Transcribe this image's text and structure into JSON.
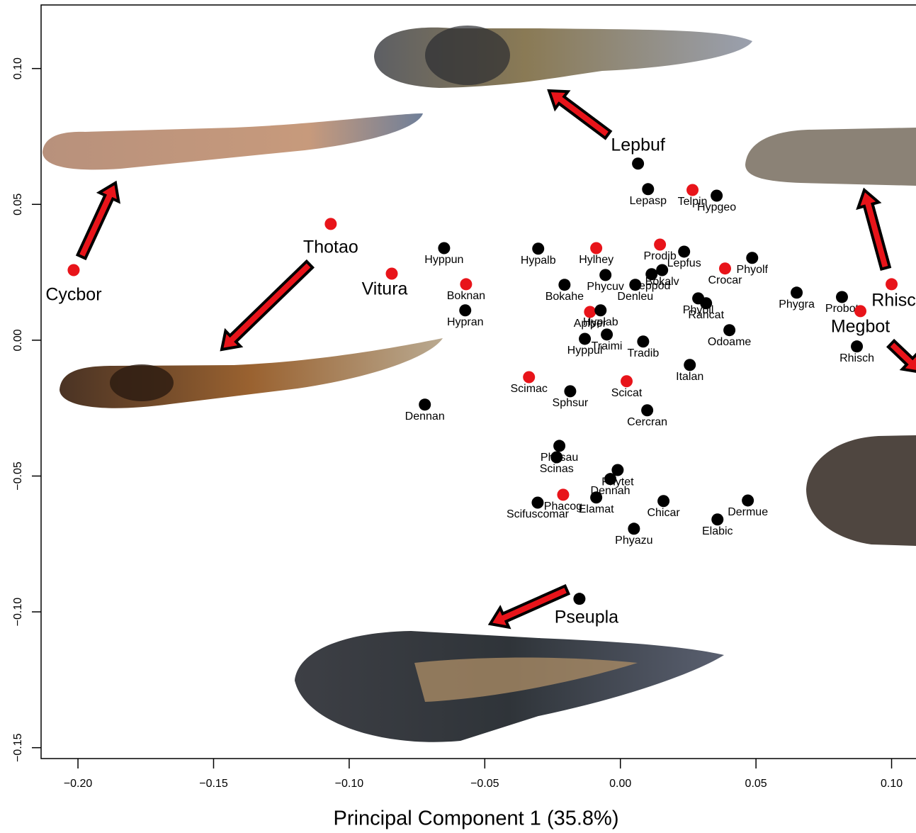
{
  "chart_data": {
    "type": "scatter",
    "x_label": "Principal Component 1 (35.8%)",
    "xlim": [
      -0.2136,
      0.109
    ],
    "ylim": [
      -0.154,
      0.1234
    ],
    "xticks": [
      {
        "value": -0.2,
        "label": "−0.20"
      },
      {
        "value": -0.15,
        "label": "−0.15"
      },
      {
        "value": -0.1,
        "label": "−0.10"
      },
      {
        "value": -0.05,
        "label": "−0.05"
      },
      {
        "value": 0,
        "label": "0.00"
      },
      {
        "value": 0.05,
        "label": "0.05"
      },
      {
        "value": 0.1,
        "label": "0.10"
      }
    ],
    "yticks": [
      {
        "value": -0.15,
        "label": "−0.15"
      },
      {
        "value": -0.1,
        "label": "−0.10"
      },
      {
        "value": -0.05,
        "label": "−0.05"
      },
      {
        "value": 0,
        "label": "0.00"
      },
      {
        "value": 0.05,
        "label": "0.05"
      },
      {
        "value": 0.1,
        "label": "0.10"
      }
    ],
    "point_labels": [
      "Lepbuf",
      "Lepasp",
      "Telpin",
      "Hypgeo",
      "Cycbor",
      "Thotao",
      "Vitura",
      "Hyppun",
      "Boknan",
      "Hypran",
      "Hypalb",
      "Hylhey",
      "Prodib",
      "Lepfus",
      "Phyolf",
      "Crocar",
      "Bokahe",
      "Phycuv",
      "Denleu",
      "Leppod",
      "Bokalv",
      "Phygra",
      "Probot",
      "Megbot",
      "Rhisc",
      "Rhisch",
      "Phybil",
      "Rancat",
      "Odoame",
      "Aplper",
      "Hyplab",
      "Hyppul",
      "Traimi",
      "Tradib",
      "Italan",
      "Scimac",
      "Sphsur",
      "Scicat",
      "Dennan",
      "Cercran",
      "Physau",
      "Scinas",
      "Phytet",
      "Dennah",
      "Phacog",
      "Scifuscomar",
      "Elamat",
      "Chicar",
      "Dermue",
      "Elabic",
      "Phyazu",
      "Pseupla"
    ],
    "x": [
      0.0065,
      0.0102,
      0.0266,
      0.0355,
      -0.2016,
      -0.1068,
      -0.0843,
      -0.065,
      -0.0569,
      -0.0572,
      -0.0303,
      -0.0089,
      0.0146,
      0.0235,
      0.0486,
      0.0386,
      -0.0206,
      -0.0055,
      0.0055,
      0.0115,
      0.0154,
      0.065,
      0.0817,
      0.0885,
      0.1,
      0.0872,
      0.0287,
      0.0316,
      0.0402,
      -0.0112,
      -0.0073,
      -0.0131,
      -0.005,
      0.0084,
      0.0256,
      -0.0337,
      -0.0185,
      0.0023,
      -0.0721,
      0.0099,
      -0.0225,
      -0.0235,
      -0.001,
      -0.0037,
      -0.0211,
      -0.0305,
      -0.0089,
      0.0159,
      0.047,
      0.0358,
      0.005,
      -0.0151
    ],
    "values": [
      0.065,
      0.0556,
      0.0553,
      0.0532,
      0.0258,
      0.0428,
      0.0245,
      0.0339,
      0.0206,
      0.011,
      0.0337,
      0.0339,
      0.0352,
      0.0326,
      0.0303,
      0.0264,
      0.0204,
      0.024,
      0.0204,
      0.0243,
      0.0258,
      0.0175,
      0.0159,
      0.0107,
      0.0206,
      -0.0023,
      0.0154,
      0.0136,
      0.0037,
      0.0104,
      0.011,
      0.0005,
      0.0021,
      -0.0005,
      -0.0091,
      -0.0136,
      -0.0188,
      -0.0151,
      -0.0237,
      -0.0258,
      -0.0389,
      -0.0431,
      -0.0478,
      -0.0511,
      -0.0569,
      -0.0598,
      -0.0579,
      -0.0592,
      -0.059,
      -0.066,
      -0.0694,
      -0.0952
    ],
    "colors": [
      "#000000",
      "#000000",
      "#e8141a",
      "#000000",
      "#e8141a",
      "#e8141a",
      "#e8141a",
      "#000000",
      "#e8141a",
      "#000000",
      "#000000",
      "#e8141a",
      "#e8141a",
      "#000000",
      "#000000",
      "#e8141a",
      "#000000",
      "#000000",
      "#000000",
      "#000000",
      "#000000",
      "#000000",
      "#000000",
      "#e8141a",
      "#e8141a",
      "#000000",
      "#000000",
      "#000000",
      "#000000",
      "#e8141a",
      "#000000",
      "#000000",
      "#000000",
      "#000000",
      "#000000",
      "#e8141a",
      "#000000",
      "#e8141a",
      "#000000",
      "#000000",
      "#000000",
      "#000000",
      "#000000",
      "#000000",
      "#e8141a",
      "#000000",
      "#000000",
      "#000000",
      "#000000",
      "#000000",
      "#000000",
      "#000000"
    ]
  }
}
